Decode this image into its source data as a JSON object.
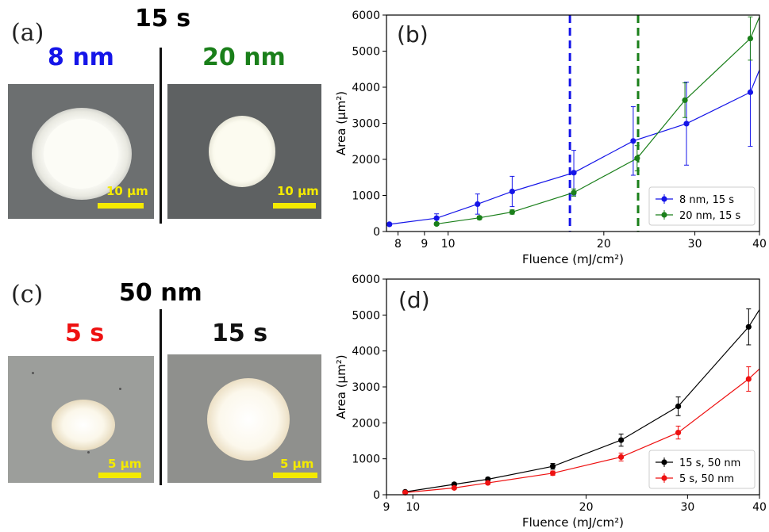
{
  "panel_a": {
    "letter": "(a)",
    "title": "15 s",
    "left_label": "8 nm",
    "right_label": "20 nm",
    "left_scale": "10 μm",
    "right_scale": "10 μm",
    "left_color": "#1515e8",
    "right_color": "#1a7f1a"
  },
  "panel_c": {
    "letter": "(c)",
    "title": "50 nm",
    "left_label": "5 s",
    "right_label": "15 s",
    "left_scale": "5 μm",
    "right_scale": "5 μm",
    "left_color": "#ee1111",
    "right_color": "#111111"
  },
  "chart_data": [
    {
      "panel": "(b)",
      "type": "line",
      "xlabel": "Fluence (mJ/cm²)",
      "ylabel": "Area (μm²)",
      "x_scale": "log",
      "xlim": [
        7.6,
        40
      ],
      "ylim": [
        0,
        6000
      ],
      "x_tick_labels": [
        "8",
        "9",
        "10",
        "20",
        "30",
        "40"
      ],
      "y_tick_labels": [
        "0",
        "1000",
        "2000",
        "3000",
        "4000",
        "5000",
        "6000"
      ],
      "vlines": [
        {
          "x": 17.2,
          "color": "#1515e8",
          "style": "dashed"
        },
        {
          "x": 23.3,
          "color": "#1a7f1a",
          "style": "dashed"
        }
      ],
      "legend_position": "lower-right",
      "series": [
        {
          "name": "8 nm, 15 s",
          "color": "#1515e8",
          "x": [
            7.7,
            9.5,
            11.4,
            13.3,
            17.5,
            22.8,
            28.9,
            38.4,
            40
          ],
          "y": [
            200,
            370,
            760,
            1110,
            1630,
            2510,
            2990,
            3860,
            4480
          ],
          "err": [
            40,
            120,
            280,
            420,
            620,
            950,
            1150,
            1500,
            null
          ]
        },
        {
          "name": "20 nm, 15 s",
          "color": "#1a7f1a",
          "x": [
            9.5,
            11.5,
            13.3,
            17.5,
            23.2,
            28.7,
            38.4,
            40
          ],
          "y": [
            210,
            380,
            540,
            1080,
            2030,
            3640,
            5350,
            5950
          ],
          "err": [
            30,
            50,
            60,
            100,
            350,
            480,
            600,
            null
          ]
        }
      ]
    },
    {
      "panel": "(d)",
      "type": "line",
      "xlabel": "Fluence (mJ/cm²)",
      "ylabel": "Area (μm²)",
      "x_scale": "log",
      "xlim": [
        9,
        40
      ],
      "ylim": [
        0,
        6000
      ],
      "x_tick_labels": [
        "9",
        "10",
        "20",
        "30",
        "40"
      ],
      "y_tick_labels": [
        "0",
        "1000",
        "2000",
        "3000",
        "4000",
        "5000",
        "6000"
      ],
      "legend_position": "lower-right",
      "series": [
        {
          "name": "15 s, 50 nm",
          "color": "#000000",
          "x": [
            9.7,
            11.8,
            13.5,
            17.5,
            23.0,
            28.9,
            38.3,
            40
          ],
          "y": [
            80,
            290,
            430,
            790,
            1520,
            2460,
            4670,
            5150
          ],
          "err": [
            30,
            40,
            50,
            80,
            170,
            260,
            500,
            null
          ]
        },
        {
          "name": "5 s, 50 nm",
          "color": "#ee1111",
          "x": [
            9.7,
            11.8,
            13.5,
            17.5,
            23.0,
            28.9,
            38.3,
            40
          ],
          "y": [
            60,
            190,
            330,
            600,
            1050,
            1730,
            3220,
            3500
          ],
          "err": [
            20,
            30,
            40,
            60,
            110,
            180,
            340,
            null
          ]
        }
      ]
    }
  ]
}
